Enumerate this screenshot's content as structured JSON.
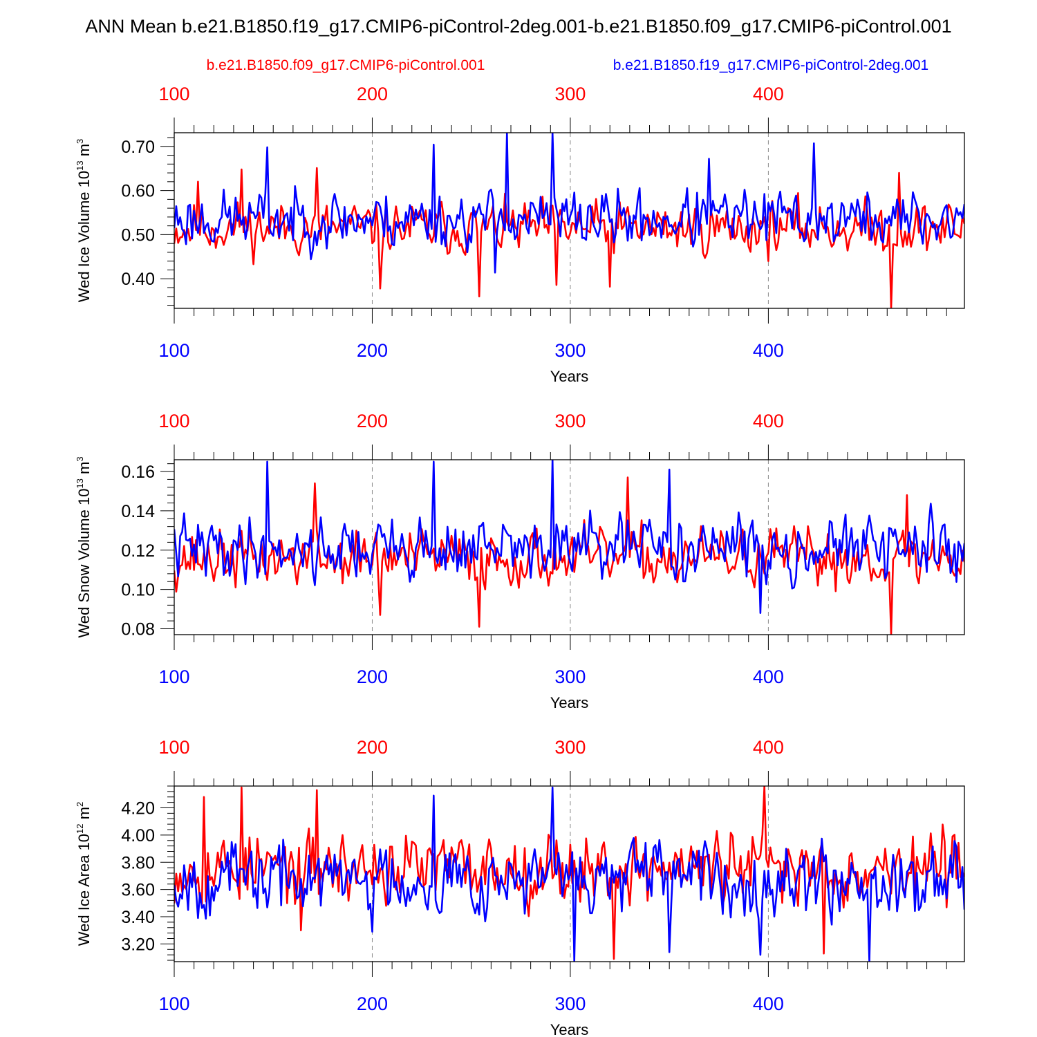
{
  "title": "ANN Mean b.e21.B1850.f19_g17.CMIP6-piControl-2deg.001-b.e21.B1850.f09_g17.CMIP6-piControl.001",
  "legend": {
    "red_name": "b.e21.B1850.f09_g17.CMIP6-piControl.001",
    "blue_name": "b.e21.B1850.f19_g17.CMIP6-piControl-2deg.001"
  },
  "colors": {
    "red": "#ff0000",
    "blue": "#0000ff",
    "axis": "#000000",
    "grid": "#888888"
  },
  "chart_data": [
    {
      "type": "line",
      "ylabel": "Wed Ice Volume 10",
      "ylabel_exp": "13",
      "ylabel_unit": " m",
      "ylabel_unit_exp": "3",
      "xlabel": "Years",
      "xlim": [
        100,
        499
      ],
      "ylim": [
        0.333,
        0.731
      ],
      "yticks": [
        0.4,
        0.5,
        0.6,
        0.7
      ],
      "ytick_labels": [
        "0.40",
        "0.50",
        "0.60",
        "0.70"
      ],
      "xticks": [
        100,
        200,
        300,
        400
      ],
      "xtick_labels": [
        "100",
        "200",
        "300",
        "400"
      ],
      "series": [
        {
          "name": "b.e21.B1850.f09_g17.CMIP6-piControl.001",
          "color": "#ff0000",
          "mean": 0.515,
          "amp": 0.045,
          "seed": 11,
          "extremes": [
            [
              112,
              0.62
            ],
            [
              134,
              0.648
            ],
            [
              172,
              0.651
            ],
            [
              204,
              0.378
            ],
            [
              254,
              0.36
            ],
            [
              293,
              0.386
            ],
            [
              320,
              0.382
            ],
            [
              462,
              0.333
            ],
            [
              466,
              0.64
            ]
          ]
        },
        {
          "name": "b.e21.B1850.f19_g17.CMIP6-piControl-2deg.001",
          "color": "#0000ff",
          "mean": 0.535,
          "amp": 0.05,
          "seed": 23,
          "extremes": [
            [
              147,
              0.698
            ],
            [
              231,
              0.704
            ],
            [
              268,
              0.731
            ],
            [
              291,
              0.731
            ],
            [
              423,
              0.707
            ],
            [
              370,
              0.672
            ],
            [
              262,
              0.414
            ]
          ]
        }
      ]
    },
    {
      "type": "line",
      "ylabel": "Wed Snow Volume 10",
      "ylabel_exp": "13",
      "ylabel_unit": " m",
      "ylabel_unit_exp": "3",
      "xlabel": "Years",
      "xlim": [
        100,
        499
      ],
      "ylim": [
        0.077,
        0.166
      ],
      "yticks": [
        0.08,
        0.1,
        0.12,
        0.14,
        0.16
      ],
      "ytick_labels": [
        "0.08",
        "0.10",
        "0.12",
        "0.14",
        "0.16"
      ],
      "xticks": [
        100,
        200,
        300,
        400
      ],
      "xtick_labels": [
        "100",
        "200",
        "300",
        "400"
      ],
      "series": [
        {
          "name": "b.e21.B1850.f09_g17.CMIP6-piControl.001",
          "color": "#ff0000",
          "mean": 0.116,
          "amp": 0.011,
          "seed": 37,
          "extremes": [
            [
              171,
              0.154
            ],
            [
              329,
              0.157
            ],
            [
              204,
              0.087
            ],
            [
              254,
              0.081
            ],
            [
              462,
              0.077
            ],
            [
              470,
              0.148
            ]
          ]
        },
        {
          "name": "b.e21.B1850.f19_g17.CMIP6-piControl-2deg.001",
          "color": "#0000ff",
          "mean": 0.121,
          "amp": 0.012,
          "seed": 41,
          "extremes": [
            [
              147,
              0.165
            ],
            [
              231,
              0.165
            ],
            [
              291,
              0.166
            ],
            [
              350,
              0.161
            ],
            [
              396,
              0.088
            ]
          ]
        }
      ]
    },
    {
      "type": "line",
      "ylabel": "Wed Ice Area 10",
      "ylabel_exp": "12",
      "ylabel_unit": " m",
      "ylabel_unit_exp": "2",
      "xlabel": "Years",
      "xlim": [
        100,
        499
      ],
      "ylim": [
        3.07,
        4.36
      ],
      "yticks": [
        3.2,
        3.4,
        3.6,
        3.8,
        4.0,
        4.2
      ],
      "ytick_labels": [
        "3.20",
        "3.40",
        "3.60",
        "3.80",
        "4.00",
        "4.20"
      ],
      "xticks": [
        100,
        200,
        300,
        400
      ],
      "xtick_labels": [
        "100",
        "200",
        "300",
        "400"
      ],
      "series": [
        {
          "name": "b.e21.B1850.f09_g17.CMIP6-piControl.001",
          "color": "#ff0000",
          "mean": 3.76,
          "amp": 0.2,
          "seed": 53,
          "extremes": [
            [
              134,
              4.35
            ],
            [
              172,
              4.33
            ],
            [
              115,
              4.28
            ],
            [
              398,
              4.36
            ],
            [
              322,
              3.09
            ],
            [
              164,
              3.3
            ],
            [
              428,
              3.13
            ]
          ]
        },
        {
          "name": "b.e21.B1850.f19_g17.CMIP6-piControl-2deg.001",
          "color": "#0000ff",
          "mean": 3.68,
          "amp": 0.2,
          "seed": 67,
          "extremes": [
            [
              291,
              4.35
            ],
            [
              231,
              4.29
            ],
            [
              302,
              3.07
            ],
            [
              350,
              3.14
            ],
            [
              396,
              3.12
            ],
            [
              451,
              3.07
            ],
            [
              200,
              3.29
            ]
          ]
        }
      ]
    }
  ]
}
